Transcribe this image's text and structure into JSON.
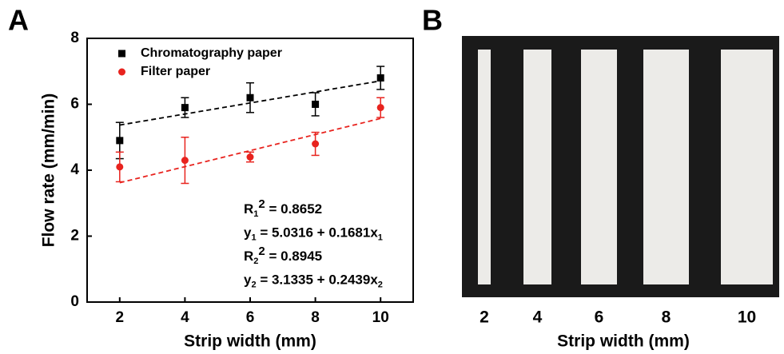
{
  "chart_data": {
    "type": "scatter",
    "x_label": "Strip width (mm)",
    "y_label": "Flow rate (mm/min)",
    "x": [
      2,
      4,
      6,
      8,
      10
    ],
    "xlim": [
      1,
      11
    ],
    "xticks": [
      2,
      4,
      6,
      8,
      10
    ],
    "ylim": [
      0,
      8
    ],
    "yticks": [
      0,
      2,
      4,
      6,
      8
    ],
    "series": [
      {
        "name": "Chromatography paper",
        "color": "#000000",
        "marker": "square",
        "values": [
          4.9,
          5.9,
          6.2,
          6.0,
          6.8
        ],
        "errors": [
          0.55,
          0.3,
          0.45,
          0.35,
          0.35
        ],
        "fit": {
          "x": [
            2,
            10
          ],
          "values": [
            5.37,
            6.71
          ]
        }
      },
      {
        "name": "Filter paper",
        "color": "#e8231e",
        "marker": "circle",
        "values": [
          4.1,
          4.3,
          4.4,
          4.8,
          5.9
        ],
        "errors": [
          0.45,
          0.7,
          0.15,
          0.35,
          0.3
        ],
        "fit": {
          "x": [
            2,
            10
          ],
          "values": [
            3.62,
            5.57
          ]
        }
      }
    ],
    "annotations": [
      [
        {
          "text": "R"
        },
        {
          "sub": "1"
        },
        {
          "sup": "2"
        },
        {
          "text": " = 0.8652"
        }
      ],
      [
        {
          "text": "y"
        },
        {
          "sub": "1"
        },
        {
          "text": " = 5.0316 + 0.1681x"
        },
        {
          "sub": "1"
        }
      ],
      [
        {
          "text": "R"
        },
        {
          "sub": "2"
        },
        {
          "sup": "2"
        },
        {
          "text": " = 0.8945"
        }
      ],
      [
        {
          "text": "y"
        },
        {
          "sub": "2"
        },
        {
          "text": " = 3.1335 + 0.2439x"
        },
        {
          "sub": "2"
        }
      ]
    ]
  },
  "panel_labels": [
    "A",
    "B"
  ],
  "photo": {
    "strip_labels": [
      2,
      4,
      6,
      8,
      10
    ],
    "x_label": "Strip width (mm)"
  }
}
